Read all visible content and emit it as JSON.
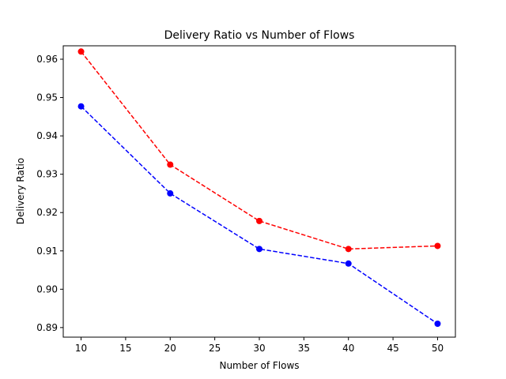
{
  "chart_data": {
    "type": "line",
    "title": "Delivery Ratio vs Number of Flows",
    "xlabel": "Number of Flows",
    "ylabel": "Delivery Ratio",
    "x": [
      10,
      20,
      30,
      40,
      50
    ],
    "xlim": [
      8,
      52
    ],
    "ylim": [
      0.8875,
      0.9635
    ],
    "xticks": [
      10,
      15,
      20,
      25,
      30,
      35,
      40,
      45,
      50
    ],
    "yticks": [
      "0.89",
      "0.90",
      "0.91",
      "0.92",
      "0.93",
      "0.94",
      "0.95",
      "0.96"
    ],
    "grid": false,
    "series": [
      {
        "values": [
          0.962,
          0.9325,
          0.9178,
          0.9105,
          0.9113
        ],
        "color": "#ff0000",
        "linestyle": "dashed",
        "marker": "circle"
      },
      {
        "values": [
          0.9477,
          0.925,
          0.9105,
          0.9067,
          0.891
        ],
        "color": "#0000ff",
        "linestyle": "dashed",
        "marker": "circle"
      }
    ]
  }
}
